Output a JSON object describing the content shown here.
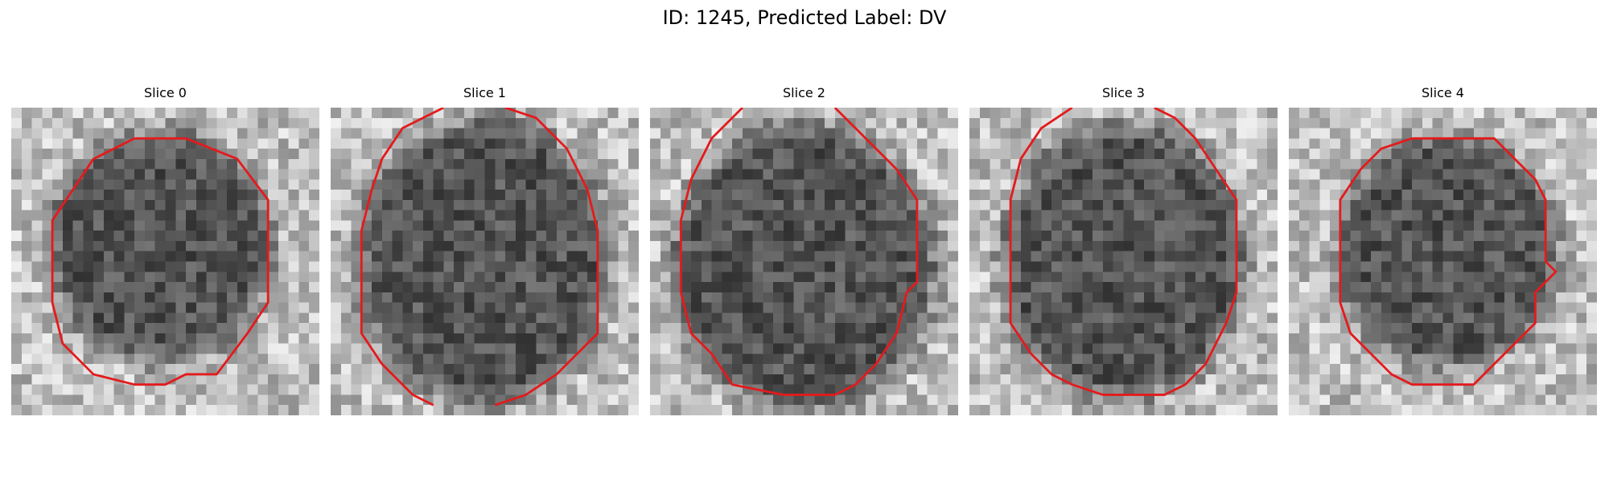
{
  "figure": {
    "title": "ID: 1245, Predicted Label: DV"
  },
  "panels": [
    {
      "title": "Slice 0",
      "image": "grayscale-em-patch-with-red-contour"
    },
    {
      "title": "Slice 1",
      "image": "grayscale-em-patch-with-red-contour"
    },
    {
      "title": "Slice 2",
      "image": "grayscale-em-patch-with-red-contour"
    },
    {
      "title": "Slice 3",
      "image": "grayscale-em-patch-with-red-contour"
    },
    {
      "title": "Slice 4",
      "image": "grayscale-em-patch-with-red-contour"
    }
  ],
  "colors": {
    "contour": "#e41a1c",
    "background": "#ffffff"
  }
}
